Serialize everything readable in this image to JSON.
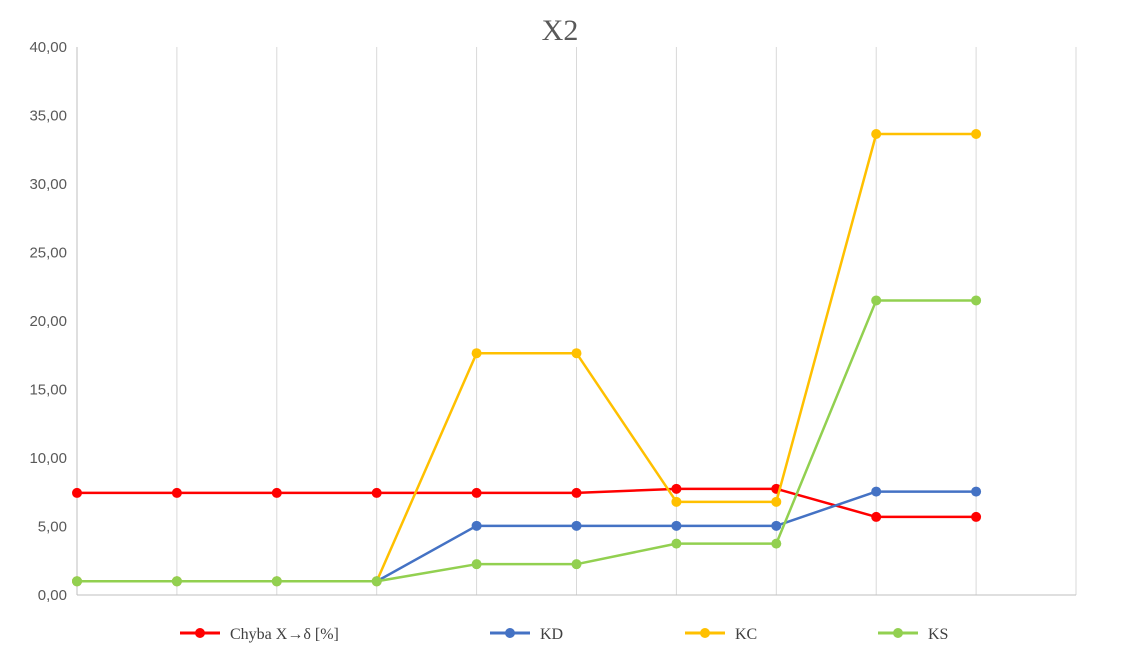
{
  "chart_data": {
    "type": "line",
    "title": "X2",
    "xlabel": "",
    "ylabel": "",
    "x": [
      1,
      2,
      3,
      4,
      5,
      6,
      7,
      8,
      9,
      10
    ],
    "ylim": [
      0,
      40
    ],
    "y_ticks": [
      "0,00",
      "5,00",
      "10,00",
      "15,00",
      "20,00",
      "25,00",
      "30,00",
      "35,00",
      "40,00"
    ],
    "grid": "vertical",
    "legend_position": "bottom",
    "series": [
      {
        "name": "Chyba X→δ [%]",
        "color": "#ff0000",
        "values": [
          7.45,
          7.45,
          7.45,
          7.45,
          7.45,
          7.45,
          7.75,
          7.75,
          5.7,
          5.7
        ]
      },
      {
        "name": "KD",
        "color": "#4472c4",
        "values": [
          1.0,
          1.0,
          1.0,
          1.0,
          5.05,
          5.05,
          5.05,
          5.05,
          7.55,
          7.55
        ]
      },
      {
        "name": "KC",
        "color": "#ffc000",
        "values": [
          1.0,
          1.0,
          1.0,
          1.0,
          17.65,
          17.65,
          6.8,
          6.8,
          33.65,
          33.65
        ]
      },
      {
        "name": "KS",
        "color": "#92d050",
        "values": [
          1.0,
          1.0,
          1.0,
          1.0,
          2.25,
          2.25,
          3.75,
          3.75,
          21.5,
          21.5
        ]
      }
    ]
  }
}
